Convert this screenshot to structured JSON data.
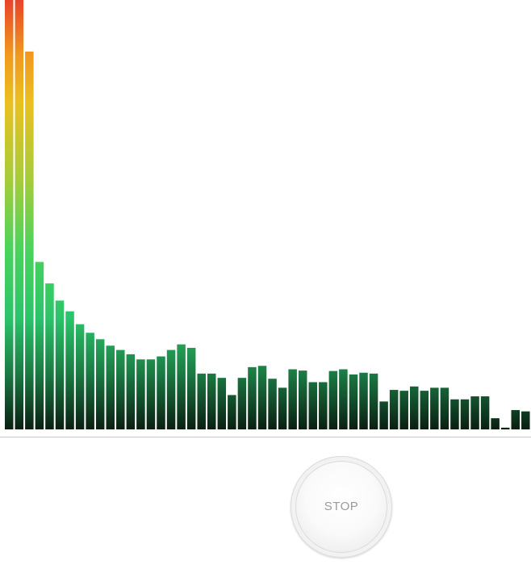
{
  "controls": {
    "stop_label": "STOP"
  },
  "chart_data": {
    "type": "bar",
    "title": "",
    "xlabel": "",
    "ylabel": "",
    "ylim": [
      0,
      1
    ],
    "grid": false,
    "color_gradient": {
      "low": "#0a1f12",
      "mid": "#2bc46a",
      "high": "#f2b21c",
      "peak": "#e8442a"
    },
    "values": [
      1.0,
      1.0,
      0.88,
      0.39,
      0.34,
      0.3,
      0.275,
      0.245,
      0.225,
      0.21,
      0.195,
      0.185,
      0.175,
      0.163,
      0.163,
      0.17,
      0.185,
      0.198,
      0.19,
      0.13,
      0.13,
      0.12,
      0.08,
      0.12,
      0.145,
      0.148,
      0.118,
      0.097,
      0.14,
      0.137,
      0.11,
      0.11,
      0.136,
      0.14,
      0.128,
      0.132,
      0.13,
      0.065,
      0.092,
      0.09,
      0.1,
      0.09,
      0.097,
      0.097,
      0.07,
      0.07,
      0.077,
      0.077,
      0.026,
      0.004,
      0.045,
      0.042
    ]
  }
}
